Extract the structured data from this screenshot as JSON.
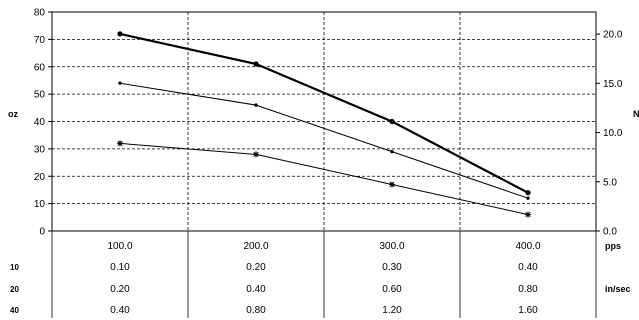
{
  "chart_data": {
    "type": "line",
    "x": [
      100.0,
      200.0,
      300.0,
      400.0
    ],
    "x_tick_labels": [
      "100.0",
      "200.0",
      "300.0",
      "400.0"
    ],
    "x_unit": "pps",
    "y_left": {
      "label": "oz",
      "ylim": [
        0,
        80
      ],
      "ticks": [
        0,
        10,
        20,
        30,
        40,
        50,
        60,
        70,
        80
      ],
      "tick_labels": [
        "0",
        "10",
        "20",
        "30",
        "40",
        "50",
        "60",
        "70",
        "80"
      ]
    },
    "y_right": {
      "label": "N",
      "ylim": [
        0.0,
        22.24
      ],
      "ticks": [
        0.0,
        5.0,
        10.0,
        15.0,
        20.0
      ],
      "tick_labels": [
        "0.0",
        "5.0",
        "10.0",
        "15.0",
        "20.0"
      ]
    },
    "grid": true,
    "legend": "none",
    "series": [
      {
        "values": [
          72,
          61,
          40,
          14
        ],
        "marker": "dot",
        "line_width": 2.2,
        "color": "#000000"
      },
      {
        "values": [
          54,
          46,
          29,
          12
        ],
        "marker": "small-dot",
        "line_width": 1,
        "color": "#000000"
      },
      {
        "values": [
          32,
          28,
          17,
          6
        ],
        "marker": "star",
        "line_width": 1,
        "color": "#000000"
      }
    ],
    "table": {
      "unit_label": "in/sec",
      "rows": [
        {
          "label": "10",
          "values": [
            "0.10",
            "0.20",
            "0.30",
            "0.40"
          ]
        },
        {
          "label": "20",
          "values": [
            "0.20",
            "0.40",
            "0.60",
            "0.80"
          ]
        },
        {
          "label": "40",
          "values": [
            "0.40",
            "0.80",
            "1.20",
            "1.60"
          ]
        }
      ]
    }
  }
}
